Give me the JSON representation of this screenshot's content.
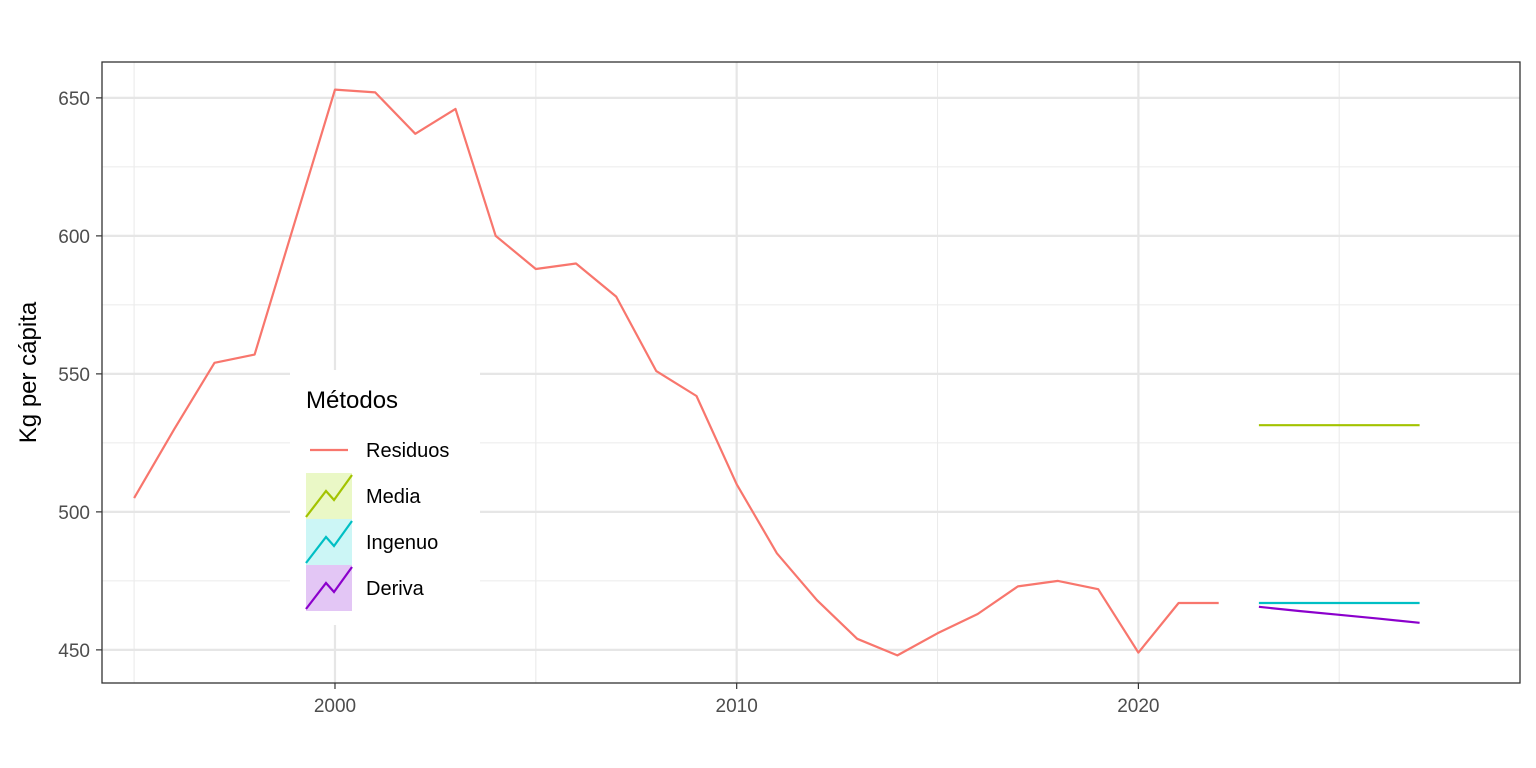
{
  "chart_data": {
    "type": "line",
    "title": "",
    "xlabel": "",
    "ylabel": "Kg per cápita",
    "xlim": [
      1994.2,
      2029.5
    ],
    "ylim": [
      438,
      663
    ],
    "x_ticks": [
      2000,
      2010,
      2020
    ],
    "y_ticks": [
      450,
      500,
      550,
      600,
      650
    ],
    "grid": true,
    "legend": {
      "title": "Métodos",
      "placement": "inside-left",
      "entries": [
        {
          "label": "Residuos",
          "color": "#f8766d",
          "key": "line"
        },
        {
          "label": "Media",
          "color": "#a3c300",
          "fill": "#eaf8c6",
          "key": "band"
        },
        {
          "label": "Ingenuo",
          "color": "#00bfc4",
          "fill": "#ccf6f6",
          "key": "band"
        },
        {
          "label": "Deriva",
          "color": "#8b00cc",
          "fill": "#e3c6f5",
          "key": "band"
        }
      ]
    },
    "series": [
      {
        "name": "Residuos",
        "color": "#f8766d",
        "x": [
          1995,
          1996,
          1997,
          1998,
          1999,
          2000,
          2001,
          2002,
          2003,
          2004,
          2005,
          2006,
          2007,
          2008,
          2009,
          2010,
          2011,
          2012,
          2013,
          2014,
          2015,
          2016,
          2017,
          2018,
          2019,
          2020,
          2021,
          2022
        ],
        "y": [
          505,
          530,
          554,
          557,
          605,
          653,
          652,
          637,
          646,
          600,
          588,
          590,
          578,
          551,
          542,
          510,
          485,
          468,
          454,
          448,
          456,
          463,
          473,
          475,
          472,
          449,
          467,
          467
        ]
      },
      {
        "name": "Media",
        "color": "#a3c300",
        "x": [
          2023,
          2024,
          2025,
          2026,
          2027
        ],
        "y": [
          531.4,
          531.4,
          531.4,
          531.4,
          531.4
        ]
      },
      {
        "name": "Ingenuo",
        "color": "#00bfc4",
        "x": [
          2023,
          2024,
          2025,
          2026,
          2027
        ],
        "y": [
          467,
          467,
          467,
          467,
          467
        ]
      },
      {
        "name": "Deriva",
        "color": "#8b00cc",
        "x": [
          2023,
          2024,
          2025,
          2026,
          2027
        ],
        "y": [
          465.6,
          464.1,
          462.7,
          461.3,
          459.8
        ]
      }
    ]
  }
}
